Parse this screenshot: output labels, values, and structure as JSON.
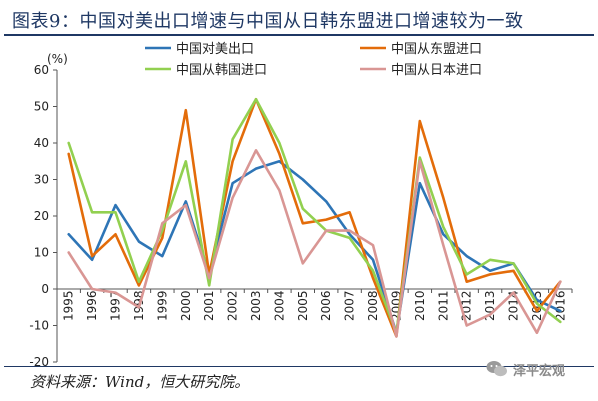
{
  "title": "图表9：中国对美出口增速与中国从日韩东盟进口增速较为一致",
  "source": "资料来源：Wind，恒大研究院。",
  "watermark": "泽平宏观",
  "chart_data": {
    "type": "line",
    "ylabel": "(%)",
    "ylim": [
      -20,
      60
    ],
    "yticks": [
      -20,
      -10,
      0,
      10,
      20,
      30,
      40,
      50,
      60
    ],
    "grid": false,
    "legend_position": "top",
    "categories": [
      "1995",
      "1996",
      "1997",
      "1998",
      "1999",
      "2000",
      "2001",
      "2002",
      "2003",
      "2004",
      "2005",
      "2006",
      "2007",
      "2008",
      "2009",
      "2010",
      "2011",
      "2012",
      "2013",
      "2014",
      "2015",
      "2016"
    ],
    "series": [
      {
        "name": "中国对美出口",
        "color": "#2e75b6",
        "values": [
          15,
          8,
          23,
          13,
          9,
          24,
          4,
          29,
          33,
          35,
          30,
          24,
          15,
          8,
          -12,
          29,
          15,
          9,
          5,
          7,
          -3,
          -6
        ]
      },
      {
        "name": "中国从东盟进口",
        "color": "#e36c0a",
        "values": [
          37,
          9,
          15,
          1,
          14,
          49,
          4,
          35,
          52,
          37,
          18,
          19,
          21,
          3,
          -13,
          46,
          25,
          2,
          4,
          5,
          -6,
          2
        ]
      },
      {
        "name": "中国从韩国进口",
        "color": "#92d050",
        "values": [
          40,
          21,
          21,
          2,
          16,
          35,
          1,
          41,
          52,
          40,
          22,
          16,
          14,
          5,
          -12,
          36,
          17,
          4,
          8,
          7,
          -4,
          -9
        ]
      },
      {
        "name": "中国从日本进口",
        "color": "#d99694",
        "values": [
          10,
          0,
          -1,
          -5,
          18,
          23,
          3,
          25,
          38,
          27,
          7,
          16,
          16,
          12,
          -13,
          35,
          12,
          -10,
          -7,
          -1,
          -12,
          2
        ]
      }
    ]
  }
}
